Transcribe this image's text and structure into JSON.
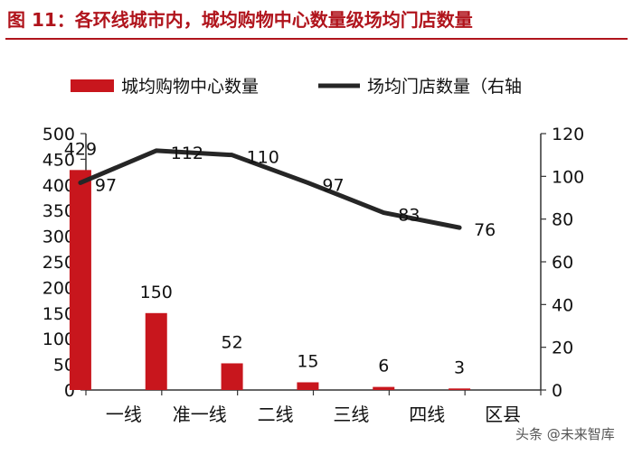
{
  "figure": {
    "title": "图 11：各环线城市内，城均购物中心数量级场均门店数量"
  },
  "watermark": {
    "text": "头条 @未来智库"
  },
  "chart_data": {
    "type": "bar",
    "categories": [
      "一线",
      "准一线",
      "二线",
      "三线",
      "四线",
      "区县"
    ],
    "series": [
      {
        "name": "城均购物中心数量",
        "type": "bar",
        "axis": "left",
        "color": "#c8161d",
        "values": [
          429,
          150,
          52,
          15,
          6,
          3
        ]
      },
      {
        "name": "场均门店数量（右轴",
        "type": "line",
        "axis": "right",
        "color": "#262626",
        "values": [
          97,
          112,
          110,
          97,
          83,
          76
        ]
      }
    ],
    "y_left": {
      "lim": [
        0,
        500
      ],
      "ticks": [
        0,
        50,
        100,
        150,
        200,
        250,
        300,
        350,
        400,
        450,
        500
      ]
    },
    "y_right": {
      "lim": [
        0,
        120
      ],
      "ticks": [
        0,
        20,
        40,
        60,
        80,
        100,
        120
      ]
    },
    "grid": false,
    "legend": {
      "position": "top"
    }
  }
}
